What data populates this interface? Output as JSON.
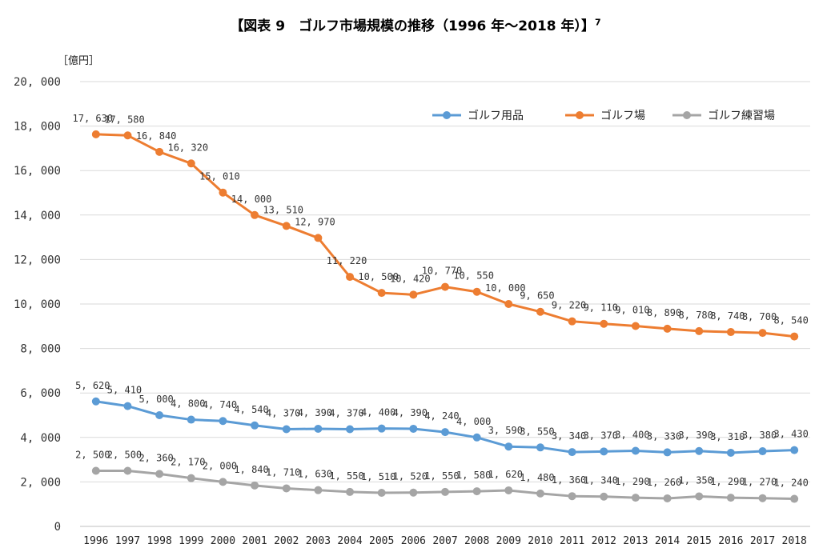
{
  "title": "【図表 9　ゴルフ市場規模の推移（1996 年～2018 年）】",
  "title_footnote": "7",
  "chart_data": {
    "type": "line",
    "unit_label": "［億円］",
    "ylim": [
      0,
      20000
    ],
    "y_ticks": [
      "0",
      "2, 000",
      "4, 000",
      "6, 000",
      "8, 000",
      "10, 000",
      "12, 000",
      "14, 000",
      "16, 000",
      "18, 000",
      "20, 000"
    ],
    "y_tick_values": [
      0,
      2000,
      4000,
      6000,
      8000,
      10000,
      12000,
      14000,
      16000,
      18000,
      20000
    ],
    "grid": true,
    "legend_position": "top-right",
    "categories": [
      "1996",
      "1997",
      "1998",
      "1999",
      "2000",
      "2001",
      "2002",
      "2003",
      "2004",
      "2005",
      "2006",
      "2007",
      "2008",
      "2009",
      "2010",
      "2011",
      "2012",
      "2013",
      "2014",
      "2015",
      "2016",
      "2017",
      "2018"
    ],
    "series": [
      {
        "name": "ゴルフ用品",
        "color": "#5B9BD5",
        "values": [
          5620,
          5410,
          5000,
          4800,
          4740,
          4540,
          4370,
          4390,
          4370,
          4400,
          4390,
          4240,
          4000,
          3590,
          3550,
          3340,
          3370,
          3400,
          3330,
          3390,
          3310,
          3380,
          3430
        ],
        "labels": [
          "5, 620",
          "5, 410",
          "5, 000",
          "4, 800",
          "4, 740",
          "4, 540",
          "4, 370",
          "4, 390",
          "4, 370",
          "4, 400",
          "4, 390",
          "4, 240",
          "4, 000",
          "3, 590",
          "3, 550",
          "3, 340",
          "3, 370",
          "3, 400",
          "3, 330",
          "3, 390",
          "3, 310",
          "3, 380",
          "3, 430"
        ]
      },
      {
        "name": "ゴルフ場",
        "color": "#ED7D31",
        "values": [
          17630,
          17580,
          16840,
          16320,
          15010,
          14000,
          13510,
          12970,
          11220,
          10500,
          10420,
          10770,
          10550,
          10000,
          9650,
          9220,
          9110,
          9010,
          8890,
          8780,
          8740,
          8700,
          8540
        ],
        "labels": [
          "17, 630",
          "17, 580",
          "16, 840",
          "16, 320",
          "15, 010",
          "14, 000",
          "13, 510",
          "12, 970",
          "11, 220",
          "10, 500",
          "10, 420",
          "10, 770",
          "10, 550",
          "10, 000",
          "9, 650",
          "9, 220",
          "9, 110",
          "9, 010",
          "8, 890",
          "8, 780",
          "8, 740",
          "8, 700",
          "8, 540"
        ]
      },
      {
        "name": "ゴルフ練習場",
        "color": "#A5A5A5",
        "values": [
          2500,
          2500,
          2360,
          2170,
          2000,
          1840,
          1710,
          1630,
          1550,
          1510,
          1520,
          1550,
          1580,
          1620,
          1480,
          1360,
          1340,
          1290,
          1260,
          1350,
          1290,
          1270,
          1240
        ],
        "labels": [
          "2, 500",
          "2, 500",
          "2, 360",
          "2, 170",
          "2, 000",
          "1, 840",
          "1, 710",
          "1, 630",
          "1, 550",
          "1, 510",
          "1, 520",
          "1, 550",
          "1, 580",
          "1, 620",
          "1, 480",
          "1, 360",
          "1, 340",
          "1, 290",
          "1, 260",
          "1, 350",
          "1, 290",
          "1, 270",
          "1, 240"
        ]
      }
    ]
  }
}
